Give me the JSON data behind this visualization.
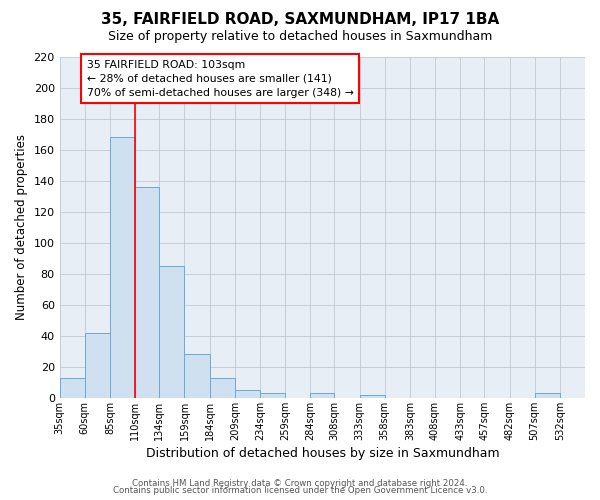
{
  "title": "35, FAIRFIELD ROAD, SAXMUNDHAM, IP17 1BA",
  "subtitle": "Size of property relative to detached houses in Saxmundham",
  "xlabel": "Distribution of detached houses by size in Saxmundham",
  "ylabel": "Number of detached properties",
  "bin_labels": [
    "35sqm",
    "60sqm",
    "85sqm",
    "110sqm",
    "134sqm",
    "159sqm",
    "184sqm",
    "209sqm",
    "234sqm",
    "259sqm",
    "284sqm",
    "308sqm",
    "333sqm",
    "358sqm",
    "383sqm",
    "408sqm",
    "433sqm",
    "457sqm",
    "482sqm",
    "507sqm",
    "532sqm"
  ],
  "bar_heights": [
    13,
    42,
    168,
    136,
    85,
    28,
    13,
    5,
    3,
    0,
    3,
    0,
    2,
    0,
    0,
    0,
    0,
    0,
    0,
    3,
    0
  ],
  "bar_color": "#cfe0f0",
  "bar_edge_color": "#6aaad4",
  "bin_edges": [
    35,
    60,
    85,
    110,
    134,
    159,
    184,
    209,
    234,
    259,
    284,
    308,
    333,
    358,
    383,
    408,
    433,
    457,
    482,
    507,
    532,
    557
  ],
  "ylim": [
    0,
    220
  ],
  "yticks": [
    0,
    20,
    40,
    60,
    80,
    100,
    120,
    140,
    160,
    180,
    200,
    220
  ],
  "vline_x": 110,
  "annotation_title": "35 FAIRFIELD ROAD: 103sqm",
  "annotation_line1": "← 28% of detached houses are smaller (141)",
  "annotation_line2": "70% of semi-detached houses are larger (348) →",
  "footnote1": "Contains HM Land Registry data © Crown copyright and database right 2024.",
  "footnote2": "Contains public sector information licensed under the Open Government Licence v3.0.",
  "background_color": "#ffffff",
  "plot_bg_color": "#e8eef5"
}
